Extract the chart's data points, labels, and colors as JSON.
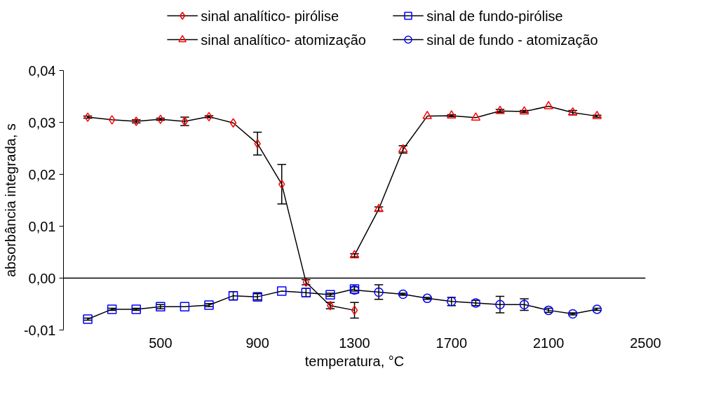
{
  "chart_data": {
    "type": "line",
    "xlabel": "temperatura, °C",
    "ylabel": "absorbância integrada, s",
    "xlim": [
      100,
      2500
    ],
    "xticks": [
      500,
      900,
      1300,
      1700,
      2100,
      2500
    ],
    "ylim": [
      -0.01,
      0.04
    ],
    "yticks": [
      {
        "value": -0.01,
        "label": "-0,01"
      },
      {
        "value": 0,
        "label": "0,00"
      },
      {
        "value": 0.01,
        "label": "0,01"
      },
      {
        "value": 0.02,
        "label": "0,02"
      },
      {
        "value": 0.03,
        "label": "0,03"
      },
      {
        "value": 0.04,
        "label": "0,04"
      }
    ],
    "grid": false,
    "legend": "top",
    "ref_lines": [
      {
        "axis": "y",
        "value": 0,
        "color": "#000000"
      }
    ],
    "series": [
      {
        "name": "sinal analítico- pirólise",
        "color": "#ff0000",
        "marker": "diamond",
        "x": [
          200,
          300,
          400,
          500,
          600,
          700,
          800,
          900,
          1000,
          1100,
          1200,
          1300
        ],
        "values": [
          0.031,
          0.0305,
          0.0302,
          0.0306,
          0.0302,
          0.0311,
          0.0299,
          0.0259,
          0.0181,
          -0.0008,
          -0.0053,
          -0.0062
        ],
        "errors": [
          0.0002,
          null,
          0.0003,
          0.0002,
          0.0008,
          0.0002,
          null,
          0.0022,
          0.0038,
          0.0005,
          0.0006,
          0.0015
        ]
      },
      {
        "name": "sinal de fundo-pirólise",
        "color": "#0000ff",
        "marker": "square",
        "x": [
          200,
          300,
          400,
          500,
          600,
          700,
          800,
          900,
          1000,
          1100,
          1200,
          1300
        ],
        "values": [
          -0.0079,
          -0.006,
          -0.006,
          -0.0055,
          -0.0055,
          -0.0052,
          -0.0034,
          -0.0036,
          -0.0025,
          -0.0028,
          -0.0032,
          -0.0021
        ],
        "errors": [
          0.0002,
          0.0002,
          0.0002,
          0.0004,
          null,
          0.0003,
          0.0008,
          0.0006,
          null,
          0.0008,
          0.0003,
          0.0004
        ]
      },
      {
        "name": "sinal analítico- atomização",
        "color": "#ff0000",
        "marker": "triangle",
        "x": [
          1300,
          1400,
          1500,
          1600,
          1700,
          1800,
          1900,
          2000,
          2100,
          2200,
          2300
        ],
        "values": [
          0.0044,
          0.0133,
          0.0248,
          0.0312,
          0.0313,
          0.0309,
          0.0322,
          0.0321,
          0.0331,
          0.0319,
          0.0312
        ],
        "errors": [
          0.0003,
          0.0004,
          0.0007,
          null,
          0.0002,
          null,
          0.0003,
          0.0002,
          null,
          0.0004,
          0.0002
        ]
      },
      {
        "name": "sinal de fundo - atomização",
        "color": "#0000ff",
        "marker": "circle",
        "x": [
          1300,
          1400,
          1500,
          1600,
          1700,
          1800,
          1900,
          2000,
          2100,
          2200,
          2300
        ],
        "values": [
          -0.0023,
          -0.0027,
          -0.0031,
          -0.0039,
          -0.0045,
          -0.0048,
          -0.0051,
          -0.0051,
          -0.0062,
          -0.0069,
          -0.006
        ],
        "errors": [
          null,
          0.0014,
          0.0002,
          0.0002,
          0.0008,
          0.0005,
          0.0016,
          0.0011,
          0.0004,
          0.0002,
          0.0002
        ]
      }
    ]
  }
}
